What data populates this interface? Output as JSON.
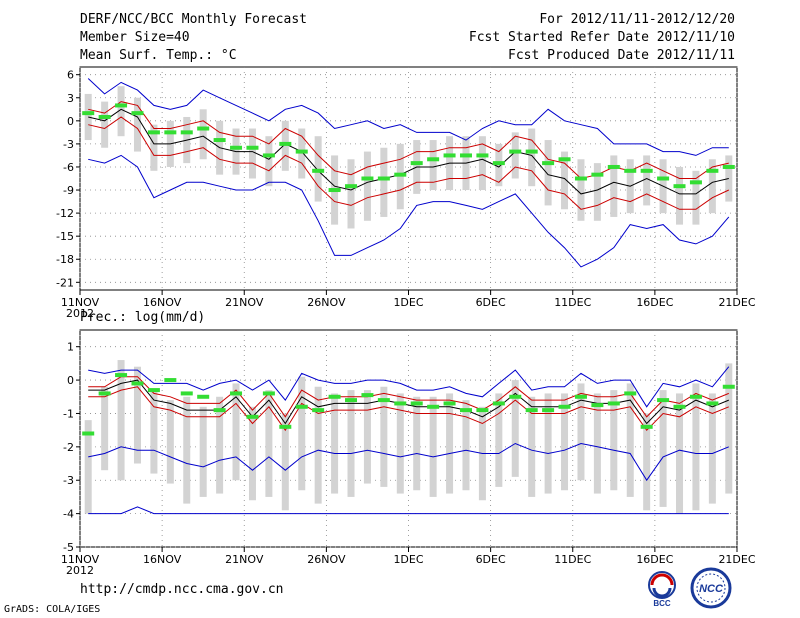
{
  "header": {
    "title": "DERF/NCC/BCC Monthly Forecast",
    "member_size": "Member Size=40",
    "variable": "Mean Surf. Temp.: °C",
    "period": "For 2012/11/11-2012/12/20",
    "fcst_started": "Fcst Started Refer Date 2012/11/10",
    "fcst_produced": "Fcst Produced Date 2012/11/11"
  },
  "footer": {
    "url": "http://cmdp.ncc.cma.gov.cn",
    "grads": "GrADS: COLA/IGES",
    "logo_bcc": "BCC",
    "logo_ncc": "NCC"
  },
  "colors": {
    "mean": "#000000",
    "inner_band": "#cc0000",
    "outer_band": "#0000cc",
    "spread_box": "#d3d3d3",
    "observed": "#33dd33"
  },
  "chart_data": [
    {
      "type": "line",
      "title": "",
      "ylabel": "Mean Surf. Temp.: °C",
      "ylim": [
        -22,
        7
      ],
      "yticks": [
        6,
        3,
        0,
        -3,
        -6,
        -9,
        -12,
        -15,
        -18,
        -21
      ],
      "grid": true,
      "xtick_labels": [
        "11NOV",
        "16NOV",
        "21NOV",
        "26NOV",
        "1DEC",
        "6DEC",
        "11DEC",
        "16DEC",
        "21DEC"
      ],
      "xtick_days": [
        0,
        5,
        10,
        15,
        20,
        25,
        30,
        35,
        40
      ],
      "x_sublabel": "2012",
      "x": [
        0,
        1,
        2,
        3,
        4,
        5,
        6,
        7,
        8,
        9,
        10,
        11,
        12,
        13,
        14,
        15,
        16,
        17,
        18,
        19,
        20,
        21,
        22,
        23,
        24,
        25,
        26,
        27,
        28,
        29,
        30,
        31,
        32,
        33,
        34,
        35,
        36,
        37,
        38,
        39
      ],
      "series": [
        {
          "name": "ensemble mean",
          "values": [
            0.5,
            0,
            1.5,
            0.5,
            -3,
            -3,
            -2.5,
            -2,
            -3.5,
            -4,
            -4,
            -5,
            -3,
            -4,
            -6.5,
            -8.5,
            -9,
            -8,
            -7.5,
            -7,
            -6,
            -6,
            -5.5,
            -5.5,
            -5,
            -6,
            -4,
            -4.5,
            -7,
            -7.5,
            -9.5,
            -9,
            -8,
            -8.5,
            -7.5,
            -8.5,
            -9.5,
            -9.5,
            -8,
            -7.5
          ]
        },
        {
          "name": "upper inner band",
          "values": [
            1.5,
            1,
            2.5,
            2,
            -1,
            -1,
            -0.5,
            0,
            -1.5,
            -2,
            -2,
            -3,
            -1,
            -2,
            -4.5,
            -6.5,
            -7,
            -6,
            -5.5,
            -5,
            -4,
            -4,
            -3.5,
            -3.5,
            -3,
            -4,
            -2,
            -2.5,
            -5,
            -5.5,
            -7.5,
            -7,
            -6,
            -6.5,
            -5.5,
            -6.5,
            -7.5,
            -7.5,
            -6,
            -5.5
          ]
        },
        {
          "name": "lower inner band",
          "values": [
            -0.5,
            -1,
            0.5,
            -1,
            -4.5,
            -4.5,
            -4,
            -3.5,
            -5,
            -5.5,
            -5.5,
            -6.5,
            -4.5,
            -5.5,
            -8.5,
            -10.5,
            -11,
            -10,
            -9.5,
            -9,
            -8,
            -8,
            -7.5,
            -7.5,
            -7,
            -8,
            -6,
            -6.5,
            -9,
            -9.5,
            -11.5,
            -11,
            -10,
            -10.5,
            -9.5,
            -10.5,
            -11.5,
            -11.5,
            -10,
            -9
          ]
        },
        {
          "name": "upper outer band",
          "values": [
            5.5,
            3.5,
            5,
            4,
            2,
            1.5,
            2,
            4,
            3,
            2,
            1,
            0,
            1.5,
            2,
            1,
            -1,
            -0.5,
            0,
            -1,
            -0.5,
            -1.5,
            -1.5,
            -1.5,
            -2.5,
            -1,
            0,
            -0.5,
            -0.5,
            1.5,
            0,
            -0.5,
            -1,
            -3,
            -3,
            -3,
            -4,
            -4,
            -4.5,
            -3.5,
            -3.5
          ]
        },
        {
          "name": "lower outer band",
          "values": [
            -5,
            -5.5,
            -4.5,
            -6,
            -10,
            -9,
            -8,
            -8,
            -8.5,
            -9,
            -9,
            -8,
            -8,
            -9,
            -13,
            -17.5,
            -17.5,
            -16.5,
            -15.5,
            -14,
            -11,
            -10.5,
            -10.5,
            -11,
            -11.5,
            -10.5,
            -9.5,
            -12,
            -14.5,
            -16.5,
            -19,
            -18,
            -16.5,
            -13.5,
            -14,
            -13.5,
            -15.5,
            -16,
            -15,
            -12.5
          ]
        }
      ],
      "spread_boxes": {
        "high": [
          3.5,
          2.5,
          4.5,
          3,
          -0.5,
          0,
          0.5,
          1.5,
          0,
          -1,
          -1,
          -2,
          0,
          -1,
          -2,
          -4.5,
          -5,
          -4,
          -3.5,
          -3,
          -2.5,
          -2.5,
          -2,
          -2,
          -2,
          -3,
          -1.5,
          -1,
          -2.5,
          -4,
          -5,
          -5.5,
          -4.5,
          -5,
          -4.5,
          -5,
          -6,
          -6.5,
          -5,
          -4.5
        ],
        "low": [
          -2.5,
          -3.5,
          -2,
          -4,
          -6.5,
          -6,
          -5.5,
          -5,
          -7,
          -7,
          -7.5,
          -8.5,
          -6.5,
          -7.5,
          -10.5,
          -13.5,
          -14,
          -13,
          -12.5,
          -11.5,
          -9.5,
          -9,
          -9,
          -9,
          -9,
          -8.5,
          -7.5,
          -8.5,
          -11,
          -11.5,
          -13,
          -13,
          -12.5,
          -12,
          -11,
          -12,
          -13.5,
          -13.5,
          -12,
          -10.5
        ]
      },
      "observed": [
        1,
        0.5,
        2,
        1,
        -1.5,
        -1.5,
        -1.5,
        -1,
        -2.5,
        -3.5,
        -3.5,
        -4.5,
        -3,
        -4,
        -6.5,
        -9,
        -8.5,
        -7.5,
        -7.5,
        -7,
        -5.5,
        -5,
        -4.5,
        -4.5,
        -4.5,
        -5.5,
        -4,
        -4,
        -5.5,
        -5,
        -7.5,
        -7,
        -6,
        -6.5,
        -6.5,
        -7.5,
        -8.5,
        -8,
        -6.5,
        -6
      ]
    },
    {
      "type": "line",
      "title": "",
      "ylabel": "Prec.: log(mm/d)",
      "ylim": [
        -5,
        1.5
      ],
      "yticks": [
        1,
        0,
        -1,
        -2,
        -3,
        -4,
        -5
      ],
      "grid": true,
      "xtick_labels": [
        "11NOV",
        "16NOV",
        "21NOV",
        "26NOV",
        "1DEC",
        "6DEC",
        "11DEC",
        "16DEC",
        "21DEC"
      ],
      "xtick_days": [
        0,
        5,
        10,
        15,
        20,
        25,
        30,
        35,
        40
      ],
      "x_sublabel": "2012",
      "x": [
        0,
        1,
        2,
        3,
        4,
        5,
        6,
        7,
        8,
        9,
        10,
        11,
        12,
        13,
        14,
        15,
        16,
        17,
        18,
        19,
        20,
        21,
        22,
        23,
        24,
        25,
        26,
        27,
        28,
        29,
        30,
        31,
        32,
        33,
        34,
        35,
        36,
        37,
        38,
        39
      ],
      "series": [
        {
          "name": "ensemble mean",
          "values": [
            -0.3,
            -0.3,
            -0.1,
            0,
            -0.6,
            -0.7,
            -0.9,
            -0.9,
            -0.9,
            -0.5,
            -1.1,
            -0.6,
            -1.3,
            -0.5,
            -0.8,
            -0.7,
            -0.7,
            -0.7,
            -0.6,
            -0.7,
            -0.8,
            -0.8,
            -0.8,
            -0.9,
            -1.1,
            -0.8,
            -0.4,
            -0.8,
            -0.8,
            -0.8,
            -0.6,
            -0.7,
            -0.7,
            -0.6,
            -1.3,
            -0.8,
            -0.9,
            -0.6,
            -0.8,
            -0.6
          ]
        },
        {
          "name": "upper inner band",
          "values": [
            -0.2,
            -0.2,
            0.1,
            0.1,
            -0.4,
            -0.5,
            -0.7,
            -0.7,
            -0.7,
            -0.3,
            -0.9,
            -0.4,
            -1.1,
            -0.3,
            -0.6,
            -0.5,
            -0.5,
            -0.5,
            -0.4,
            -0.5,
            -0.6,
            -0.6,
            -0.6,
            -0.7,
            -0.9,
            -0.6,
            -0.2,
            -0.6,
            -0.6,
            -0.6,
            -0.4,
            -0.5,
            -0.5,
            -0.4,
            -1.1,
            -0.6,
            -0.7,
            -0.4,
            -0.6,
            -0.4
          ]
        },
        {
          "name": "lower inner band",
          "values": [
            -0.5,
            -0.5,
            -0.3,
            -0.2,
            -0.8,
            -0.9,
            -1.1,
            -1.1,
            -1.1,
            -0.7,
            -1.3,
            -0.8,
            -1.5,
            -0.7,
            -1,
            -0.9,
            -0.9,
            -0.9,
            -0.8,
            -0.9,
            -1,
            -1,
            -1,
            -1.1,
            -1.3,
            -1,
            -0.6,
            -1,
            -1,
            -1,
            -0.8,
            -0.9,
            -0.9,
            -0.8,
            -1.5,
            -1,
            -1.1,
            -0.8,
            -1,
            -0.8
          ]
        },
        {
          "name": "upper outer band",
          "values": [
            0.3,
            0.2,
            0.3,
            0.3,
            -0.1,
            -0.1,
            -0.1,
            -0.3,
            -0.1,
            0,
            -0.3,
            0,
            -0.6,
            0.2,
            0,
            -0.1,
            -0.1,
            0,
            0,
            -0.1,
            -0.3,
            -0.3,
            -0.2,
            -0.4,
            -0.5,
            -0.1,
            0.3,
            -0.3,
            -0.2,
            -0.2,
            0.2,
            -0.1,
            0,
            0,
            -0.8,
            -0.1,
            -0.2,
            0,
            -0.2,
            0.4
          ]
        },
        {
          "name": "lower outer band",
          "values": [
            -2.3,
            -2.2,
            -2,
            -2.1,
            -2.1,
            -2.3,
            -2.5,
            -2.6,
            -2.4,
            -2.3,
            -2.7,
            -2.3,
            -2.7,
            -2.3,
            -2.1,
            -2.2,
            -2.2,
            -2.1,
            -2.2,
            -2.3,
            -2.2,
            -2.3,
            -2.2,
            -2.1,
            -2.2,
            -2.2,
            -1.9,
            -2.1,
            -2.2,
            -2.1,
            -1.9,
            -2,
            -2.1,
            -2.2,
            -3,
            -2.3,
            -2.1,
            -2.2,
            -2.2,
            -2
          ]
        },
        {
          "name": "minimum",
          "values": [
            -4,
            -4,
            -4,
            -3.8,
            -4,
            -4,
            -4,
            -4,
            -4,
            -4,
            -4,
            -4,
            -4,
            -4,
            -4,
            -4,
            -4,
            -4,
            -4,
            -4,
            -4,
            -4,
            -4,
            -4,
            -4,
            -4,
            -4,
            -4,
            -4,
            -4,
            -4,
            -4,
            -4,
            -4,
            -4,
            -4,
            -4,
            -4,
            -4,
            -4
          ]
        }
      ],
      "spread_boxes": {
        "high": [
          -1.2,
          -0.2,
          0.6,
          0.4,
          -0.3,
          -0.6,
          -0.5,
          -0.8,
          -0.5,
          -0.1,
          -0.8,
          -0.3,
          -1,
          0.1,
          -0.2,
          -0.4,
          -0.3,
          -0.3,
          -0.2,
          -0.4,
          -0.5,
          -0.5,
          -0.4,
          -0.6,
          -0.8,
          -0.4,
          0,
          -0.5,
          -0.4,
          -0.4,
          -0.1,
          -0.4,
          -0.3,
          -0.1,
          -1,
          -0.3,
          -0.4,
          -0.1,
          -0.4,
          0.5
        ],
        "low": [
          -4,
          -2.7,
          -3,
          -2.5,
          -2.8,
          -3.1,
          -3.7,
          -3.5,
          -3.4,
          -3,
          -3.6,
          -3.5,
          -3.9,
          -3.3,
          -3.7,
          -3.4,
          -3.5,
          -3.1,
          -3.2,
          -3.4,
          -3.3,
          -3.5,
          -3.4,
          -3.3,
          -3.6,
          -3.2,
          -2.9,
          -3.5,
          -3.4,
          -3.3,
          -3,
          -3.4,
          -3.3,
          -3.5,
          -3.9,
          -3.8,
          -4,
          -3.9,
          -3.7,
          -3.4
        ]
      },
      "observed": [
        -1.6,
        -0.4,
        0.15,
        -0.1,
        -0.3,
        0,
        -0.4,
        -0.5,
        -0.9,
        -0.4,
        -1.1,
        -0.4,
        -1.4,
        -0.8,
        -0.9,
        -0.5,
        -0.6,
        -0.45,
        -0.6,
        -0.7,
        -0.7,
        -0.8,
        -0.7,
        -0.9,
        -0.9,
        -0.7,
        -0.5,
        -0.9,
        -0.9,
        -0.8,
        -0.5,
        -0.75,
        -0.7,
        -0.4,
        -1.4,
        -0.6,
        -0.8,
        -0.5,
        -0.7,
        -0.2
      ]
    }
  ]
}
